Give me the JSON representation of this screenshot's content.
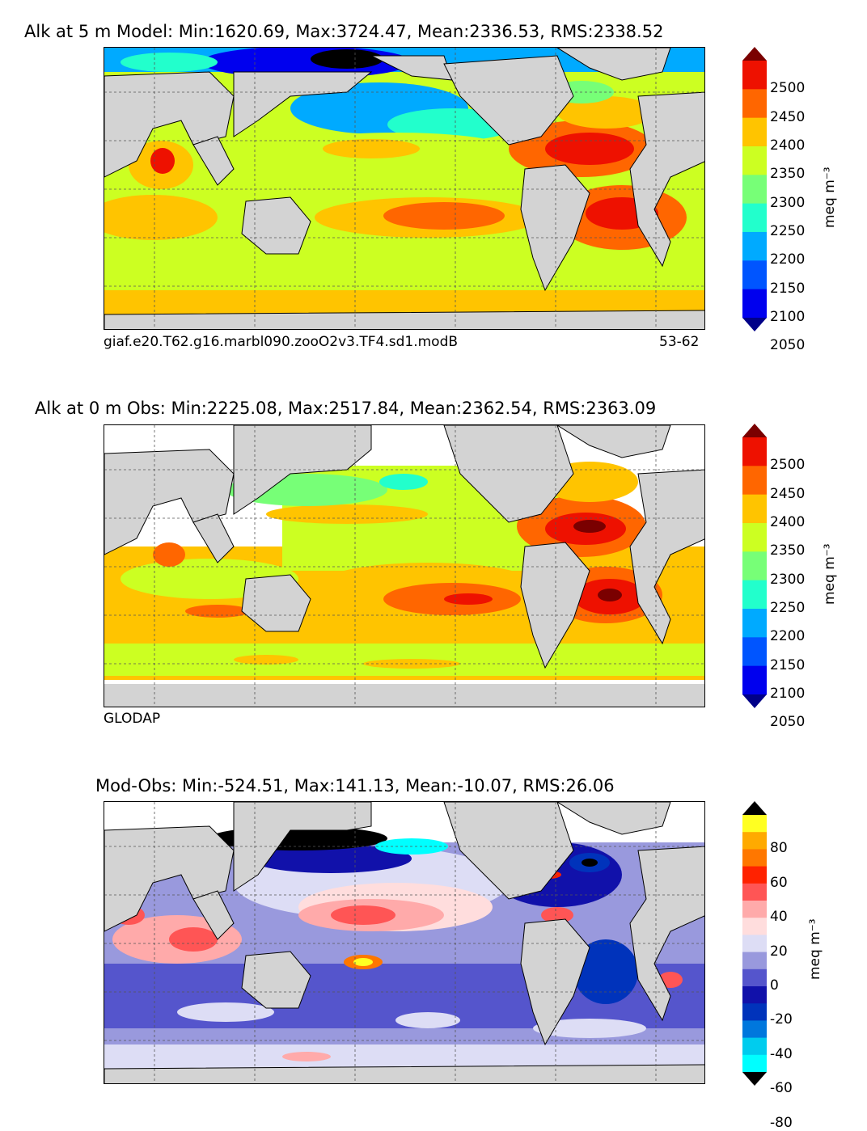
{
  "panels": [
    {
      "title": "Alk at 5 m Model: Min:1620.69, Max:3724.47, Mean:2336.53, RMS:2338.52",
      "caption_left": "giaf.e20.T62.g16.marbl090.zooO2v3.TF4.sd1.modB",
      "caption_right": "53-62"
    },
    {
      "title": "Alk at 0 m Obs: Min:2225.08, Max:2517.84, Mean:2362.54, RMS:2363.09",
      "caption_left": "GLODAP",
      "caption_right": ""
    },
    {
      "title": "Mod-Obs: Min:-524.51, Max:141.13, Mean:-10.07, RMS:26.06",
      "caption_left": "",
      "caption_right": ""
    }
  ],
  "chart_data": [
    {
      "type": "heatmap",
      "title": "Alk at 5 m Model: Min:1620.69, Max:3724.47, Mean:2336.53, RMS:2338.52",
      "colorbar": {
        "label": "meq m⁻³",
        "ticks": [
          "2500",
          "2450",
          "2400",
          "2350",
          "2300",
          "2250",
          "2200",
          "2150",
          "2100",
          "2050"
        ],
        "colors": [
          "#7a0000",
          "#ee1100",
          "#ff6600",
          "#ffc400",
          "#ccff22",
          "#77ff77",
          "#22ffcc",
          "#00aaff",
          "#0055ff",
          "#0000ee",
          "#000088"
        ],
        "extend": "both"
      }
    },
    {
      "type": "heatmap",
      "title": "Alk at 0 m Obs: Min:2225.08, Max:2517.84, Mean:2362.54, RMS:2363.09",
      "colorbar": {
        "label": "meq m⁻³",
        "ticks": [
          "2500",
          "2450",
          "2400",
          "2350",
          "2300",
          "2250",
          "2200",
          "2150",
          "2100",
          "2050"
        ],
        "colors": [
          "#7a0000",
          "#ee1100",
          "#ff6600",
          "#ffc400",
          "#ccff22",
          "#77ff77",
          "#22ffcc",
          "#00aaff",
          "#0055ff",
          "#0000ee",
          "#000088"
        ],
        "extend": "both"
      }
    },
    {
      "type": "heatmap",
      "title": "Mod-Obs: Min:-524.51, Max:141.13, Mean:-10.07, RMS:26.06",
      "colorbar": {
        "label": "meq m⁻³",
        "ticks": [
          "80",
          "60",
          "40",
          "20",
          "0",
          "-20",
          "-40",
          "-60",
          "-80"
        ],
        "colors": [
          "#000000",
          "#ffff22",
          "#ffaa00",
          "#ff7700",
          "#ff2200",
          "#ff5555",
          "#ffaaaa",
          "#ffdddd",
          "#ddddf5",
          "#9999dd",
          "#5555cc",
          "#1111aa",
          "#0033bb",
          "#0077dd",
          "#00ccee",
          "#00ffff",
          "#000000"
        ],
        "extend": "both"
      }
    }
  ],
  "colors": {
    "land": "#d3d3d3",
    "missing": "#ffffff"
  }
}
